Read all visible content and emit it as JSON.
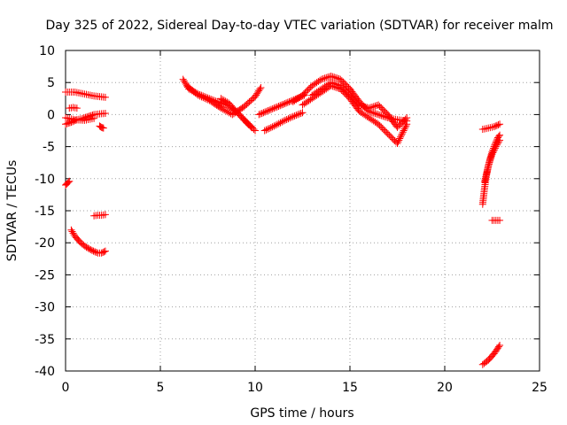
{
  "chart_data": {
    "type": "scatter",
    "title": "Day 325 of 2022, Sidereal Day-to-day VTEC variation (SDTVAR) for receiver malm",
    "xlabel": "GPS time / hours",
    "ylabel": "SDTVAR / TECUs",
    "xlim": [
      0,
      25
    ],
    "ylim": [
      -40,
      10
    ],
    "xticks": [
      0,
      5,
      10,
      15,
      20,
      25
    ],
    "yticks": [
      10,
      5,
      0,
      -5,
      -10,
      -15,
      -20,
      -25,
      -30,
      -35,
      -40
    ],
    "grid": true,
    "marker": "+",
    "color": "#ff0000",
    "segments": [
      {
        "name": "early-upper",
        "x": [
          0.0,
          0.5,
          1.0,
          1.5,
          2.1
        ],
        "y": [
          3.5,
          3.5,
          3.2,
          2.9,
          2.7
        ]
      },
      {
        "name": "early-small",
        "x": [
          0.2,
          0.4,
          0.6
        ],
        "y": [
          1.0,
          1.1,
          1.0
        ]
      },
      {
        "name": "early-mid",
        "x": [
          0.0,
          0.3,
          0.6,
          0.9,
          1.2,
          1.5,
          1.8,
          2.1
        ],
        "y": [
          -1.5,
          -1.2,
          -0.8,
          -0.6,
          -0.3,
          0.0,
          0.1,
          0.2
        ]
      },
      {
        "name": "early-mid-2",
        "x": [
          0.0,
          0.5,
          1.0,
          1.5
        ],
        "y": [
          -0.5,
          -0.8,
          -0.9,
          -0.6
        ]
      },
      {
        "name": "early-end",
        "x": [
          1.8,
          1.9,
          2.0
        ],
        "y": [
          -1.8,
          -2.0,
          -2.1
        ]
      },
      {
        "name": "early-low",
        "x": [
          0.0,
          0.1,
          0.2
        ],
        "y": [
          -11.0,
          -10.7,
          -10.4
        ]
      },
      {
        "name": "early-flat",
        "x": [
          1.5,
          1.7,
          1.9,
          2.1
        ],
        "y": [
          -15.8,
          -15.7,
          -15.7,
          -15.6
        ]
      },
      {
        "name": "early-curve",
        "x": [
          0.3,
          0.5,
          0.8,
          1.1,
          1.4,
          1.7,
          1.9,
          2.1
        ],
        "y": [
          -18.0,
          -19.0,
          -20.0,
          -20.7,
          -21.2,
          -21.6,
          -21.6,
          -21.3
        ]
      },
      {
        "name": "day-a",
        "x": [
          6.2,
          6.5,
          7.0,
          7.5,
          8.0,
          8.5,
          9.0,
          9.5,
          10.0
        ],
        "y": [
          5.5,
          4.0,
          3.2,
          2.6,
          2.0,
          1.5,
          0.5,
          -1.0,
          -2.5
        ]
      },
      {
        "name": "day-b",
        "x": [
          6.4,
          7.0,
          7.6,
          8.2,
          8.8,
          9.4,
          10.0,
          10.3
        ],
        "y": [
          4.5,
          3.0,
          2.2,
          1.0,
          0.0,
          1.2,
          2.8,
          4.2
        ]
      },
      {
        "name": "day-c",
        "x": [
          8.2,
          8.6,
          9.0,
          9.4,
          9.8
        ],
        "y": [
          2.5,
          1.8,
          0.5,
          -0.8,
          -2.0
        ]
      },
      {
        "name": "day-d",
        "x": [
          10.2,
          10.6,
          11.0,
          11.4,
          11.8,
          12.2,
          12.6
        ],
        "y": [
          0.0,
          0.5,
          1.0,
          1.5,
          2.0,
          2.5,
          3.0
        ]
      },
      {
        "name": "day-e",
        "x": [
          10.5,
          11.0,
          11.5,
          12.0,
          12.5
        ],
        "y": [
          -2.5,
          -1.8,
          -1.0,
          -0.3,
          0.3
        ]
      },
      {
        "name": "day-f",
        "x": [
          12.0,
          12.5,
          13.0,
          13.5,
          14.0,
          14.5,
          15.0,
          15.5,
          16.0,
          16.5,
          17.0,
          17.5,
          18.0
        ],
        "y": [
          2.0,
          3.0,
          4.5,
          5.5,
          6.0,
          5.5,
          4.0,
          2.0,
          0.5,
          0.0,
          -0.5,
          -0.8,
          -1.0
        ]
      },
      {
        "name": "day-g",
        "x": [
          12.5,
          13.0,
          13.5,
          14.0,
          14.5,
          15.0,
          15.5,
          16.0,
          16.5,
          17.0,
          17.5,
          18.0
        ],
        "y": [
          1.5,
          2.5,
          3.5,
          4.5,
          4.0,
          2.5,
          0.5,
          -0.5,
          -1.5,
          -3.0,
          -4.5,
          -1.5
        ]
      },
      {
        "name": "day-h",
        "x": [
          13.0,
          13.5,
          14.0,
          14.5,
          15.0,
          15.5,
          16.0,
          16.5,
          17.0,
          17.5,
          18.0
        ],
        "y": [
          3.0,
          4.0,
          5.0,
          4.5,
          3.0,
          1.5,
          1.0,
          1.5,
          0.0,
          -2.0,
          -0.5
        ]
      },
      {
        "name": "late-vert",
        "x": [
          22.0,
          22.1,
          22.2,
          22.3,
          22.4,
          22.5,
          22.6,
          22.7,
          22.8,
          22.9
        ],
        "y": [
          -14.0,
          -11.5,
          -9.5,
          -8.0,
          -6.8,
          -5.8,
          -5.0,
          -4.3,
          -3.6,
          -3.2
        ]
      },
      {
        "name": "late-vert-2",
        "x": [
          22.1,
          22.3,
          22.5,
          22.7,
          22.9
        ],
        "y": [
          -10.5,
          -8.0,
          -6.2,
          -5.0,
          -4.0
        ]
      },
      {
        "name": "late-top",
        "x": [
          22.0,
          22.3,
          22.6,
          22.9
        ],
        "y": [
          -2.3,
          -2.1,
          -1.9,
          -1.5
        ]
      },
      {
        "name": "late-flat",
        "x": [
          22.5,
          22.7,
          22.9
        ],
        "y": [
          -16.5,
          -16.5,
          -16.5
        ]
      },
      {
        "name": "late-bottom",
        "x": [
          22.0,
          22.3,
          22.6,
          22.9
        ],
        "y": [
          -39.0,
          -38.3,
          -37.3,
          -36.0
        ]
      }
    ]
  }
}
